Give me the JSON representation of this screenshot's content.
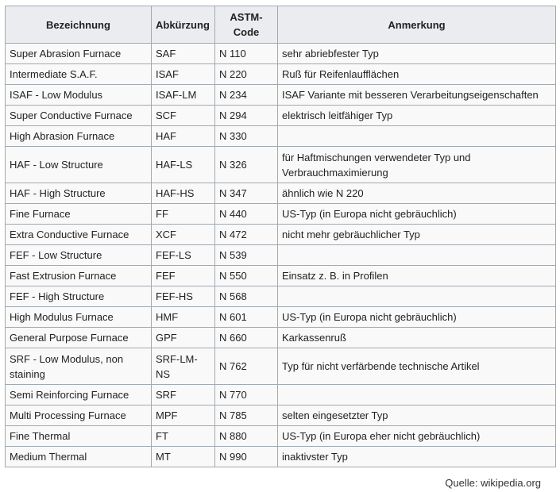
{
  "table": {
    "headers": {
      "name": "Bezeichnung",
      "abbr": "Abkürzung",
      "code": "ASTM-Code",
      "note": "Anmerkung"
    },
    "rows": [
      {
        "name": "Super Abrasion Furnace",
        "abbr": "SAF",
        "code": "N 110",
        "note": "sehr abriebfester Typ"
      },
      {
        "name": "Intermediate S.A.F.",
        "abbr": "ISAF",
        "code": "N 220",
        "note": "Ruß für Reifenlaufflächen"
      },
      {
        "name": "ISAF - Low Modulus",
        "abbr": "ISAF-LM",
        "code": "N 234",
        "note": "ISAF Variante mit besseren Verarbeitungseigenschaften"
      },
      {
        "name": "Super Conductive Furnace",
        "abbr": "SCF",
        "code": "N 294",
        "note": "elektrisch leitfähiger Typ"
      },
      {
        "name": "High Abrasion Furnace",
        "abbr": "HAF",
        "code": "N 330",
        "note": ""
      },
      {
        "name": "HAF - Low Structure",
        "abbr": "HAF-LS",
        "code": "N 326",
        "note": "für Haftmischungen verwendeter Typ und Verbrauchmaximierung"
      },
      {
        "name": "HAF - High Structure",
        "abbr": "HAF-HS",
        "code": "N 347",
        "note": "ähnlich wie N 220"
      },
      {
        "name": "Fine Furnace",
        "abbr": "FF",
        "code": "N 440",
        "note": "US-Typ (in Europa nicht gebräuchlich)"
      },
      {
        "name": "Extra Conductive Furnace",
        "abbr": "XCF",
        "code": "N 472",
        "note": "nicht mehr gebräuchlicher Typ"
      },
      {
        "name": "FEF - Low Structure",
        "abbr": "FEF-LS",
        "code": "N 539",
        "note": ""
      },
      {
        "name": "Fast Extrusion Furnace",
        "abbr": "FEF",
        "code": "N 550",
        "note": "Einsatz z. B. in Profilen"
      },
      {
        "name": "FEF - High Structure",
        "abbr": "FEF-HS",
        "code": "N 568",
        "note": ""
      },
      {
        "name": "High Modulus Furnace",
        "abbr": "HMF",
        "code": "N 601",
        "note": "US-Typ (in Europa nicht gebräuchlich)"
      },
      {
        "name": "General Purpose Furnace",
        "abbr": "GPF",
        "code": "N 660",
        "note": "Karkassenruß"
      },
      {
        "name": "SRF - Low Modulus, non staining",
        "abbr": "SRF-LM-NS",
        "code": "N 762",
        "note": "Typ für nicht verfärbende technische Artikel"
      },
      {
        "name": "Semi Reinforcing Furnace",
        "abbr": "SRF",
        "code": "N 770",
        "note": ""
      },
      {
        "name": "Multi Processing Furnace",
        "abbr": "MPF",
        "code": "N 785",
        "note": "selten eingesetzter Typ"
      },
      {
        "name": "Fine Thermal",
        "abbr": "FT",
        "code": "N 880",
        "note": "US-Typ (in Europa eher nicht gebräuchlich)"
      },
      {
        "name": "Medium Thermal",
        "abbr": "MT",
        "code": "N 990",
        "note": "inaktivster Typ"
      }
    ]
  },
  "source": {
    "label": "Quelle:",
    "site": "wikipedia.org"
  }
}
